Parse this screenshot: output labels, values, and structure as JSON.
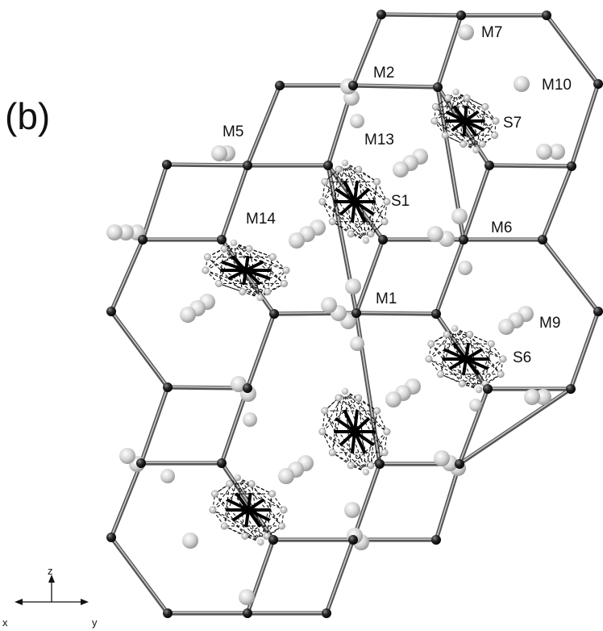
{
  "figure": {
    "panel_label": "(b)",
    "labels": [
      {
        "id": "M7",
        "text": "M7"
      },
      {
        "id": "M2",
        "text": "M2"
      },
      {
        "id": "M10",
        "text": "M10"
      },
      {
        "id": "M5",
        "text": "M5"
      },
      {
        "id": "M13",
        "text": "M13"
      },
      {
        "id": "S7",
        "text": "S7"
      },
      {
        "id": "S1",
        "text": "S1"
      },
      {
        "id": "M14",
        "text": "M14"
      },
      {
        "id": "M6",
        "text": "M6"
      },
      {
        "id": "M1",
        "text": "M1"
      },
      {
        "id": "M9",
        "text": "M9"
      },
      {
        "id": "S6",
        "text": "S6"
      }
    ],
    "axes": {
      "z": "z",
      "x": "x",
      "y": "y"
    },
    "colors": {
      "framework_atom": "#1a1a1a",
      "bond": "#555555",
      "guest_atom": "#dcdcdc",
      "polyhedron": "#111111"
    }
  }
}
